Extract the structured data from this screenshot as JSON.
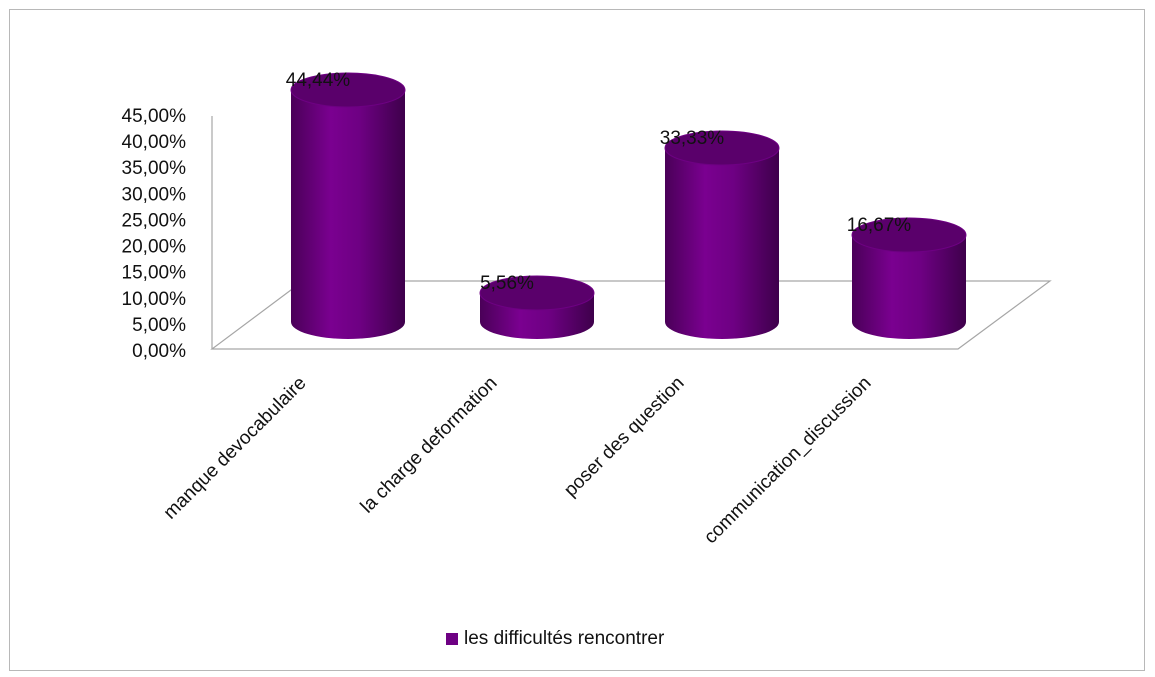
{
  "chart_data": {
    "type": "bar",
    "style": "3d-cylinder",
    "categories": [
      "manque devocabulaire",
      "la charge deformation",
      "poser des question",
      "communication_discussion"
    ],
    "series": [
      {
        "name": "les difficultés rencontrer",
        "values": [
          44.44,
          5.56,
          33.33,
          16.67
        ],
        "data_labels": [
          "44,44%",
          "5,56%",
          "33,33%",
          "16,67%"
        ],
        "color": "#6e0083"
      }
    ],
    "ylim": [
      0,
      45
    ],
    "y_ticks": [
      0,
      5,
      10,
      15,
      20,
      25,
      30,
      35,
      40,
      45
    ],
    "y_tick_labels": [
      "0,00%",
      "5,00%",
      "10,00%",
      "15,00%",
      "20,00%",
      "25,00%",
      "30,00%",
      "35,00%",
      "40,00%",
      "45,00%"
    ],
    "grid": false,
    "legend_position": "bottom",
    "title": "",
    "xlabel": "",
    "ylabel": ""
  }
}
